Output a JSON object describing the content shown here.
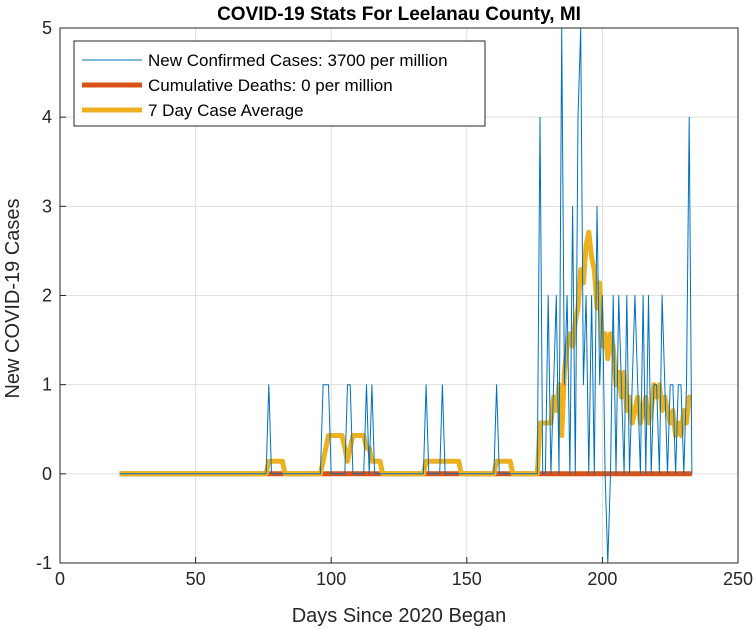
{
  "chart_data": {
    "type": "line",
    "title": "COVID-19 Stats For Leelanau County, MI",
    "xlabel": "Days Since 2020 Began",
    "ylabel": "New COVID-19 Cases",
    "xlim": [
      0,
      250
    ],
    "ylim": [
      -1,
      5
    ],
    "xticks": [
      0,
      50,
      100,
      150,
      200,
      250
    ],
    "yticks": [
      -1,
      0,
      1,
      2,
      3,
      4,
      5
    ],
    "grid": true,
    "legend_position": "top-left",
    "series": [
      {
        "name": "New Confirmed Cases: 3700 per million",
        "color": "#0072BD",
        "x": [
          22,
          76,
          77,
          78,
          96,
          97,
          98,
          99,
          100,
          105,
          106,
          107,
          108,
          112,
          113,
          114,
          115,
          116,
          117,
          134,
          135,
          136,
          140,
          141,
          142,
          160,
          161,
          162,
          176,
          177,
          178,
          179,
          180,
          181,
          182,
          183,
          184,
          185,
          186,
          187,
          188,
          189,
          190,
          191,
          192,
          193,
          194,
          195,
          196,
          197,
          198,
          199,
          200,
          201,
          202,
          203,
          204,
          205,
          206,
          207,
          208,
          209,
          210,
          211,
          212,
          213,
          214,
          215,
          216,
          217,
          218,
          219,
          220,
          221,
          222,
          223,
          224,
          225,
          226,
          227,
          228,
          229,
          230,
          231,
          232,
          233
        ],
        "y": [
          0,
          0,
          1,
          0,
          0,
          1,
          1,
          1,
          0,
          0,
          1,
          1,
          0,
          0,
          1,
          0,
          1,
          0,
          0,
          0,
          1,
          0,
          0,
          1,
          0,
          0,
          1,
          0,
          0,
          4,
          0,
          0,
          2,
          0,
          1,
          2,
          0,
          5,
          1,
          2,
          0,
          3,
          0,
          4,
          5,
          1,
          2,
          0,
          2,
          0,
          3,
          1,
          2,
          0,
          -1,
          0,
          2,
          0,
          2,
          1,
          0,
          2,
          0,
          1,
          2,
          1,
          0,
          2,
          0,
          2,
          0,
          1,
          1,
          0,
          2,
          1,
          0,
          1,
          1,
          0,
          1,
          1,
          0,
          1,
          4,
          0
        ]
      },
      {
        "name": "Cumulative Deaths: 0 per million",
        "color": "#D95319",
        "x": [
          22,
          233
        ],
        "y": [
          0,
          0
        ]
      },
      {
        "name": "7 Day Case Average",
        "color": "#EDB120",
        "x": [
          22,
          76,
          77,
          78,
          79,
          82,
          83,
          84,
          96,
          97,
          98,
          99,
          100,
          101,
          104,
          105,
          106,
          107,
          108,
          110,
          111,
          112,
          113,
          114,
          115,
          116,
          117,
          118,
          119,
          120,
          121,
          122,
          134,
          135,
          136,
          140,
          141,
          142,
          143,
          147,
          148,
          160,
          161,
          162,
          166,
          167,
          168,
          176,
          177,
          178,
          179,
          180,
          181,
          182,
          183,
          184,
          185,
          186,
          187,
          188,
          189,
          190,
          191,
          192,
          193,
          194,
          195,
          196,
          197,
          198,
          199,
          200,
          201,
          202,
          203,
          204,
          205,
          206,
          207,
          208,
          209,
          210,
          211,
          212,
          213,
          214,
          215,
          216,
          217,
          218,
          219,
          220,
          221,
          222,
          223,
          224,
          225,
          226,
          227,
          228,
          229,
          230,
          231,
          232,
          233
        ],
        "y": [
          0,
          0,
          0.14,
          0.14,
          0.14,
          0.14,
          0,
          0,
          0,
          0.14,
          0.29,
          0.43,
          0.43,
          0.43,
          0.43,
          0.29,
          0.14,
          0.29,
          0.43,
          0.43,
          0.43,
          0.43,
          0.29,
          0.29,
          0.14,
          0.14,
          0.14,
          0.14,
          0,
          0,
          0,
          0,
          0,
          0.14,
          0.14,
          0.14,
          0.14,
          0.14,
          0.14,
          0.14,
          0,
          0,
          0.14,
          0.14,
          0.14,
          0,
          0,
          0,
          0.57,
          0.57,
          0.57,
          0.57,
          0.57,
          0.86,
          0.71,
          1.0,
          0.43,
          1.14,
          1.43,
          1.57,
          1.43,
          1.71,
          1.86,
          2.29,
          2.14,
          2.57,
          2.71,
          2.43,
          2.29,
          1.86,
          2.14,
          1.43,
          1.57,
          1.29,
          1.57,
          1.43,
          1.0,
          1.14,
          0.86,
          1.14,
          0.71,
          0.86,
          0.57,
          0.71,
          0.86,
          0.57,
          0.71,
          0.86,
          0.57,
          0.71,
          1.0,
          0.86,
          1.0,
          0.71,
          0.86,
          0.71,
          0.57,
          0.71,
          0.43,
          0.57,
          0.43,
          0.71,
          0.57,
          0.86,
          0.86
        ]
      }
    ]
  }
}
